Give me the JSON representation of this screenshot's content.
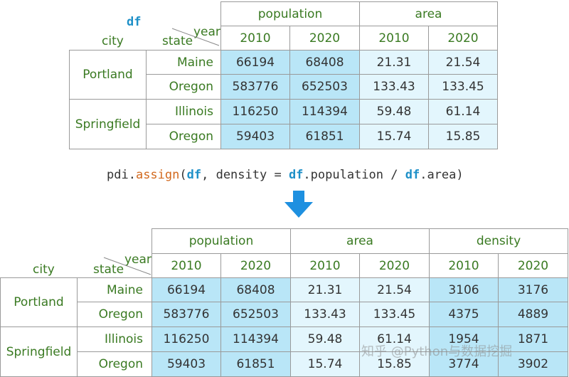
{
  "top_table": {
    "name": "df",
    "col_groups": [
      "population",
      "area"
    ],
    "years": [
      "2010",
      "2020",
      "2010",
      "2020"
    ],
    "corner": {
      "city": "city",
      "state": "state",
      "year": "year"
    },
    "cities": [
      "Portland",
      "Springfield"
    ],
    "states": [
      "Maine",
      "Oregon",
      "Illinois",
      "Oregon"
    ],
    "rows": [
      [
        "66194",
        "68408",
        "21.31",
        "21.54"
      ],
      [
        "583776",
        "652503",
        "133.43",
        "133.45"
      ],
      [
        "116250",
        "114394",
        "59.48",
        "61.14"
      ],
      [
        "59403",
        "61851",
        "15.74",
        "15.85"
      ]
    ]
  },
  "code": {
    "prefix": "pdi.",
    "fn": "assign",
    "open": "(",
    "arg1": "df",
    "mid": ", density = ",
    "arg2": "df",
    "pop": ".population / ",
    "arg3": "df",
    "end": ".area)"
  },
  "bottom_table": {
    "col_groups": [
      "population",
      "area",
      "density"
    ],
    "years": [
      "2010",
      "2020",
      "2010",
      "2020",
      "2010",
      "2020"
    ],
    "corner": {
      "city": "city",
      "state": "state",
      "year": "year"
    },
    "cities": [
      "Portland",
      "Springfield"
    ],
    "states": [
      "Maine",
      "Oregon",
      "Illinois",
      "Oregon"
    ],
    "rows": [
      [
        "66194",
        "68408",
        "21.31",
        "21.54",
        "3106",
        "3176"
      ],
      [
        "583776",
        "652503",
        "133.43",
        "133.45",
        "4375",
        "4889"
      ],
      [
        "116250",
        "114394",
        "59.48",
        "61.14",
        "1954",
        "1871"
      ],
      [
        "59403",
        "61851",
        "15.74",
        "15.85",
        "3774",
        "3902"
      ]
    ]
  },
  "watermark": "知乎 @Python与数据挖掘",
  "colors": {
    "arrow": "#1e90e0",
    "label": "#3a7a22",
    "pop_fill": "#b9e6f7",
    "area_fill": "#e3f6fd"
  }
}
